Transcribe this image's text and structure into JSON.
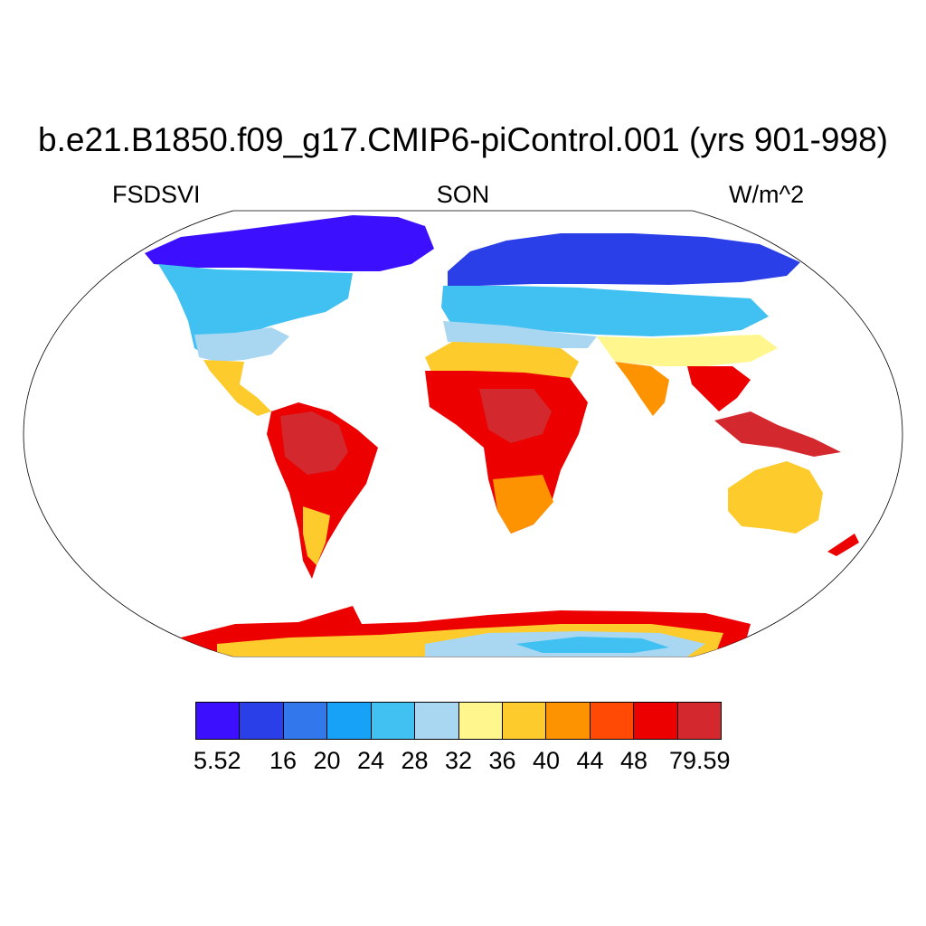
{
  "title": "b.e21.B1850.f09_g17.CMIP6-piControl.001 (yrs 901-998)",
  "subtitle_left": "FSDSVI",
  "subtitle_center": "SON",
  "subtitle_right": "W/m^2",
  "projection": "Robinson",
  "colorbar": {
    "colors": [
      "#3d0fff",
      "#2a3fe8",
      "#3278ec",
      "#17a1f7",
      "#41c0f2",
      "#a9d7f2",
      "#fff78e",
      "#fdcb2b",
      "#fe9302",
      "#ff4a06",
      "#ec0000",
      "#d2282e"
    ],
    "labels": [
      "5.52",
      "16",
      "20",
      "24",
      "28",
      "32",
      "36",
      "40",
      "44",
      "48",
      "79.59"
    ],
    "label_box_index": [
      0,
      2,
      3,
      4,
      5,
      6,
      7,
      8,
      9,
      10,
      12
    ]
  }
}
